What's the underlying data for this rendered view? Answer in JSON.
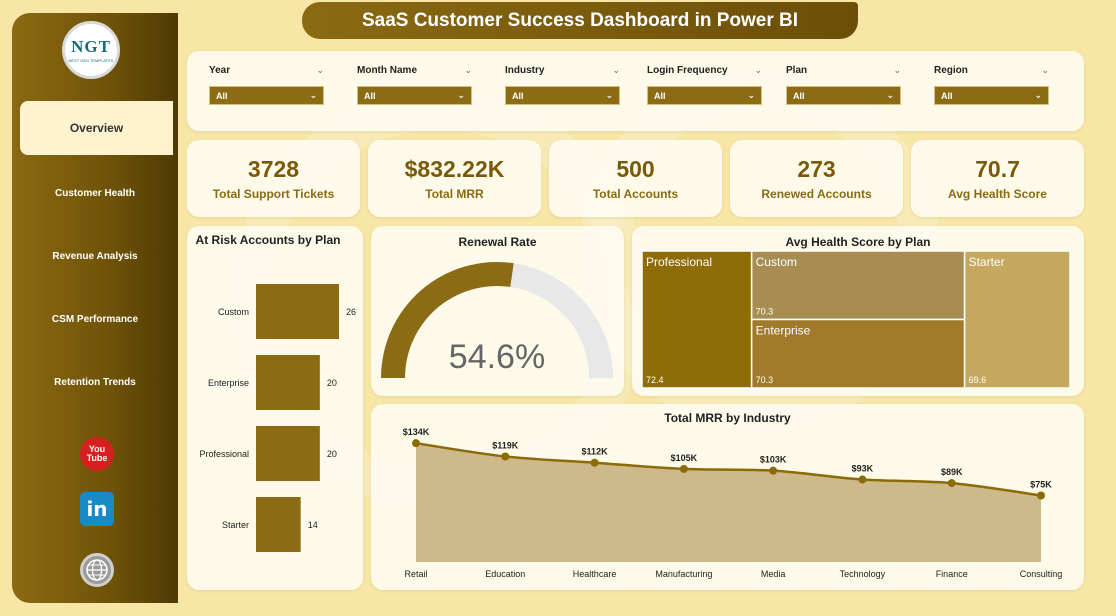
{
  "title": "SaaS Customer Success Dashboard in Power BI",
  "logo": {
    "main": "NGT",
    "sub": "NEXT GEN TEMPLATES"
  },
  "nav": [
    {
      "label": "Overview",
      "active": true
    },
    {
      "label": "Customer Health"
    },
    {
      "label": "Revenue Analysis"
    },
    {
      "label": "CSM Performance"
    },
    {
      "label": "Retention Trends"
    }
  ],
  "social": {
    "youtube": "You Tube",
    "linkedin": "in"
  },
  "filters": [
    {
      "label": "Year",
      "value": "All"
    },
    {
      "label": "Month Name",
      "value": "All"
    },
    {
      "label": "Industry",
      "value": "All"
    },
    {
      "label": "Login Frequency",
      "value": "All"
    },
    {
      "label": "Plan",
      "value": "All"
    },
    {
      "label": "Region",
      "value": "All"
    }
  ],
  "kpis": [
    {
      "value": "3728",
      "label": "Total Support Tickets"
    },
    {
      "value": "$832.22K",
      "label": "Total MRR"
    },
    {
      "value": "500",
      "label": "Total Accounts"
    },
    {
      "value": "273",
      "label": "Renewed Accounts"
    },
    {
      "value": "70.7",
      "label": "Avg Health Score"
    }
  ],
  "colors": {
    "accent": "#8b6c14",
    "dark": "#6b4f08",
    "panel": "#fffdf5",
    "gauge_track": "#e8e8e8"
  },
  "chart_data": [
    {
      "type": "bar",
      "title": "At Risk Accounts by Plan",
      "categories": [
        "Custom",
        "Enterprise",
        "Professional",
        "Starter"
      ],
      "values": [
        26,
        20,
        20,
        14
      ],
      "value_labels": [
        "26",
        "20",
        "20",
        "14"
      ],
      "grid": false
    },
    {
      "type": "gauge",
      "title": "Renewal Rate",
      "value": 54.6,
      "display": "54.6%",
      "range": [
        0,
        100
      ]
    },
    {
      "type": "treemap",
      "title": "Avg Health Score by Plan",
      "categories": [
        "Professional",
        "Custom",
        "Enterprise",
        "Starter"
      ],
      "values": [
        72.4,
        70.3,
        70.3,
        69.6
      ],
      "value_labels": [
        "72.4",
        "70.3",
        "70.3",
        "69.6"
      ]
    },
    {
      "type": "area",
      "title": "Total MRR by Industry",
      "categories": [
        "Retail",
        "Education",
        "Healthcare",
        "Manufacturing",
        "Media",
        "Technology",
        "Finance",
        "Consulting"
      ],
      "values": [
        134,
        119,
        112,
        105,
        103,
        93,
        89,
        75
      ],
      "value_labels": [
        "$134K",
        "$119K",
        "$112K",
        "$105K",
        "$103K",
        "$93K",
        "$89K",
        "$75K"
      ],
      "grid": false
    }
  ]
}
